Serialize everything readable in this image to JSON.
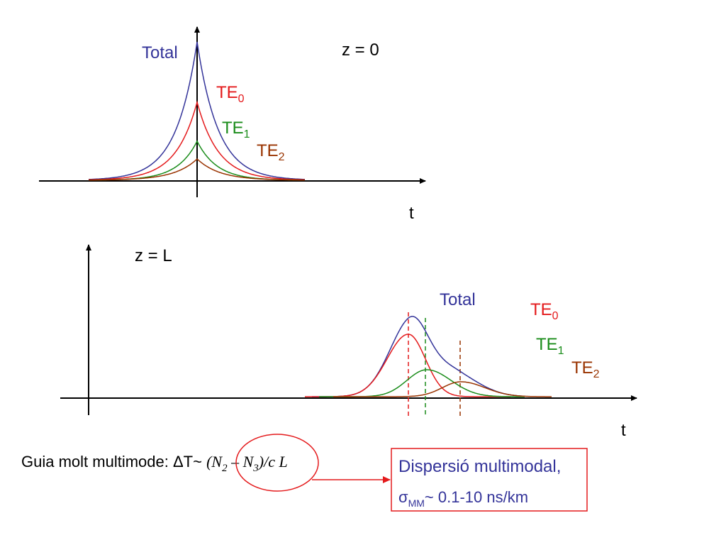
{
  "colors": {
    "total": "#333399",
    "te0": "#e41a1c",
    "te1": "#1a8c1a",
    "te2": "#993300",
    "axis": "#000000",
    "highlight": "#e41a1c",
    "box_text": "#333399"
  },
  "top_panel": {
    "condition": "z = 0",
    "axis_label": "t",
    "labels": {
      "total": "Total",
      "te0": {
        "base": "TE",
        "sub": "0"
      },
      "te1": {
        "base": "TE",
        "sub": "1"
      },
      "te2": {
        "base": "TE",
        "sub": "2"
      }
    }
  },
  "bottom_panel": {
    "condition": "z = L",
    "axis_label": "t",
    "labels": {
      "total": "Total",
      "te0": {
        "base": "TE",
        "sub": "0"
      },
      "te1": {
        "base": "TE",
        "sub": "1"
      },
      "te2": {
        "base": "TE",
        "sub": "2"
      }
    }
  },
  "formula": {
    "prefix": "Guia molt multimode: ",
    "delta": "ΔT~ ",
    "n2": "N",
    "n2_sub": "2",
    "minus": " – ",
    "n3": "N",
    "n3_sub": "3",
    "paren_close": ")/",
    "c": "c",
    "space_l": " L",
    "paren_open": "("
  },
  "result_box": {
    "line1": "Dispersió multimodal,",
    "sigma": "σ",
    "sigma_sub": "MM",
    "line2_rest": "~ 0.1-10 ns/km"
  }
}
